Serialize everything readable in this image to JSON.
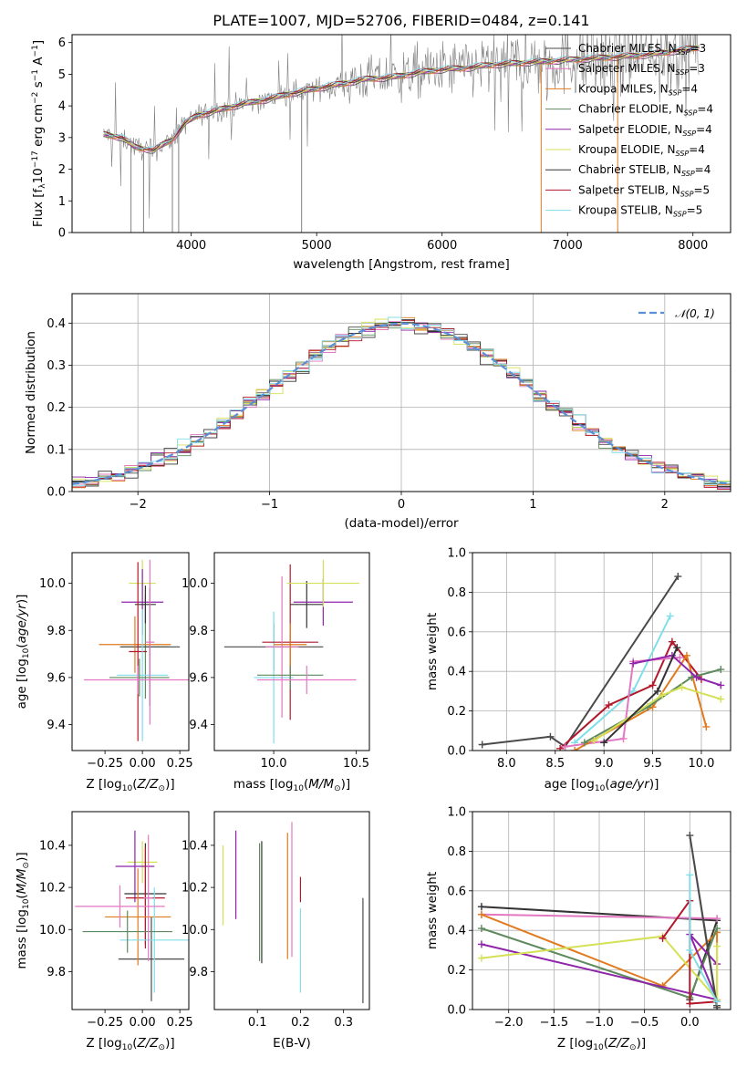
{
  "figure": {
    "title": "PLATE=1007, MJD=52706, FIBERID=0484, z=0.141"
  },
  "series_names": [
    "Chabrier MILES, N_SSP=3",
    "Salpeter MILES, N_SSP=3",
    "Kroupa MILES, N_SSP=4",
    "Chabrier ELODIE, N_SSP=4",
    "Salpeter ELODIE, N_SSP=4",
    "Kroupa ELODIE, N_SSP=4",
    "Chabrier STELIB, N_SSP=4",
    "Salpeter STELIB, N_SSP=5",
    "Kroupa STELIB, N_SSP=5"
  ],
  "series_colors": [
    "#4a4a4a",
    "#e377c2",
    "#e07b1f",
    "#5e8a5e",
    "#8e24aa",
    "#d4e157",
    "#333333",
    "#b2182b",
    "#80deea"
  ],
  "chart_data": [
    {
      "type": "line",
      "panel": "spectrum",
      "title": "PLATE=1007, MJD=52706, FIBERID=0484, z=0.141",
      "xlabel": "wavelength [Angstrom, rest frame]",
      "ylabel": "Flux [f_λ 10^-17 erg cm^-2 s^-1 A^-1]",
      "xlim": [
        3050,
        8300
      ],
      "ylim": [
        0,
        6.25
      ],
      "xticks": [
        4000,
        5000,
        6000,
        7000,
        8000
      ],
      "yticks": [
        0,
        1,
        2,
        3,
        4,
        5,
        6
      ],
      "legend": "right",
      "data_color": "#808080",
      "continuum": {
        "x": [
          3300,
          3450,
          3550,
          3700,
          3850,
          3950,
          4050,
          4200,
          4400,
          4600,
          4800,
          5000,
          5200,
          5400,
          5600,
          5800,
          6000,
          6200,
          6400,
          6600,
          6800,
          7000,
          7200,
          7400,
          7600,
          7800,
          8050
        ],
        "y": [
          3.1,
          3.0,
          2.7,
          2.6,
          2.95,
          3.45,
          3.7,
          3.85,
          4.05,
          4.2,
          4.4,
          4.55,
          4.7,
          4.85,
          4.9,
          5.05,
          5.15,
          5.2,
          5.3,
          5.35,
          5.4,
          5.45,
          5.5,
          5.55,
          5.6,
          5.7,
          5.85
        ]
      }
    },
    {
      "type": "step",
      "panel": "residual_histogram",
      "xlabel": "(data-model)/error",
      "ylabel": "Normed distribution",
      "xlim": [
        -2.5,
        2.5
      ],
      "ylim": [
        0,
        0.47
      ],
      "xticks": [
        -2,
        -1,
        0,
        1,
        2
      ],
      "yticks": [
        0.0,
        0.1,
        0.2,
        0.3,
        0.4
      ],
      "grid": true,
      "bin_width": 0.1,
      "reference_curve": {
        "name": "𝒩(0, 1)",
        "mean": 0,
        "sigma": 1,
        "color": "#5b8fd6",
        "style": "dashed"
      },
      "legend": "top-right"
    },
    {
      "type": "errorbar",
      "panel": "age_vs_Z",
      "xlabel": "Z [log10(Z/Z⊙)]",
      "ylabel": "age [log10(age/yr)]",
      "xlim": [
        -0.47,
        0.31
      ],
      "ylim": [
        9.29,
        10.13
      ],
      "xticks": [
        -0.25,
        0.0,
        0.25
      ],
      "yticks": [
        9.4,
        9.6,
        9.8,
        10.0
      ],
      "points": [
        {
          "x": 0.02,
          "xerr": 0.16,
          "y": 9.73,
          "yerr": 0.22,
          "c": 3
        },
        {
          "x": 0.0,
          "xerr": 0.09,
          "y": 10.0,
          "yerr": 0.1,
          "c": 5
        },
        {
          "x": 0.05,
          "xerr": 0.2,
          "y": 9.73,
          "yerr": 0.25,
          "c": 0
        },
        {
          "x": -0.05,
          "xerr": 0.24,
          "y": 9.74,
          "yerr": 0.12,
          "c": 2
        },
        {
          "x": 0.0,
          "xerr": 0.14,
          "y": 9.92,
          "yerr": 0.14,
          "c": 4
        },
        {
          "x": 0.02,
          "xerr": 0.07,
          "y": 9.91,
          "yerr": 0.08,
          "c": 6
        },
        {
          "x": -0.03,
          "xerr": 0.06,
          "y": 9.71,
          "yerr": 0.38,
          "c": 7
        },
        {
          "x": 0.0,
          "xerr": 0.17,
          "y": 9.61,
          "yerr": 0.28,
          "c": 8
        },
        {
          "x": -0.02,
          "xerr": 0.2,
          "y": 9.6,
          "yerr": 0.08,
          "c": 3
        },
        {
          "x": -0.03,
          "xerr": 0.36,
          "y": 9.59,
          "yerr": 0.06,
          "c": 1
        },
        {
          "x": 0.05,
          "xerr": 0.03,
          "y": 9.75,
          "yerr": 0.35,
          "c": 1
        }
      ]
    },
    {
      "type": "errorbar",
      "panel": "age_vs_mass",
      "xlabel": "mass [log10(M/M⊙)]",
      "ylabel": "",
      "xlim": [
        9.64,
        10.58
      ],
      "ylim": [
        9.29,
        10.13
      ],
      "xticks": [
        10.0,
        10.5
      ],
      "yticks": [
        9.4,
        9.6,
        9.8,
        10.0
      ],
      "points": [
        {
          "x": 10.0,
          "xerr": 0.3,
          "y": 9.73,
          "yerr": 0.1,
          "c": 0
        },
        {
          "x": 10.0,
          "xerr": 0.12,
          "y": 9.6,
          "yerr": 0.28,
          "c": 8
        },
        {
          "x": 10.1,
          "xerr": 0.17,
          "y": 9.75,
          "yerr": 0.33,
          "c": 7
        },
        {
          "x": 10.2,
          "xerr": 0.1,
          "y": 9.91,
          "yerr": 0.1,
          "c": 6
        },
        {
          "x": 10.3,
          "xerr": 0.18,
          "y": 9.92,
          "yerr": 0.1,
          "c": 4
        },
        {
          "x": 10.3,
          "xerr": 0.22,
          "y": 10.0,
          "yerr": 0.1,
          "c": 5
        },
        {
          "x": 10.05,
          "xerr": 0.1,
          "y": 9.73,
          "yerr": 0.3,
          "c": 1
        },
        {
          "x": 10.1,
          "xerr": 0.2,
          "y": 9.61,
          "yerr": 0.06,
          "c": 3
        },
        {
          "x": 10.1,
          "xerr": 0.1,
          "y": 9.74,
          "yerr": 0.09,
          "c": 2
        },
        {
          "x": 10.2,
          "xerr": 0.3,
          "y": 9.59,
          "yerr": 0.06,
          "c": 1
        }
      ]
    },
    {
      "type": "line",
      "panel": "weight_vs_age",
      "xlabel": "age [log10(age/yr)]",
      "ylabel": "mass weight",
      "xlim": [
        7.65,
        10.3
      ],
      "ylim": [
        0,
        1.0
      ],
      "xticks": [
        8.0,
        8.5,
        9.0,
        9.5,
        10.0
      ],
      "yticks": [
        0.0,
        0.2,
        0.4,
        0.6,
        0.8,
        1.0
      ],
      "grid": true,
      "series": [
        {
          "c": 0,
          "x": [
            7.75,
            8.45,
            8.6,
            9.76
          ],
          "y": [
            0.03,
            0.07,
            0.02,
            0.88
          ]
        },
        {
          "c": 8,
          "x": [
            8.7,
            9.3,
            9.68
          ],
          "y": [
            0.04,
            0.3,
            0.68
          ]
        },
        {
          "c": 7,
          "x": [
            8.55,
            9.05,
            9.5,
            9.7,
            10.0
          ],
          "y": [
            0.01,
            0.23,
            0.33,
            0.55,
            0.36
          ]
        },
        {
          "c": 1,
          "x": [
            8.6,
            9.2,
            9.3,
            9.78
          ],
          "y": [
            0.02,
            0.06,
            0.45,
            0.47
          ]
        },
        {
          "c": 2,
          "x": [
            8.7,
            9.5,
            9.85,
            10.05
          ],
          "y": [
            0.0,
            0.22,
            0.48,
            0.12
          ]
        },
        {
          "c": 3,
          "x": [
            8.8,
            9.45,
            9.9,
            10.2
          ],
          "y": [
            0.04,
            0.22,
            0.37,
            0.41
          ]
        },
        {
          "c": 4,
          "x": [
            9.3,
            9.7,
            9.95,
            10.2
          ],
          "y": [
            0.44,
            0.48,
            0.37,
            0.33
          ]
        },
        {
          "c": 5,
          "x": [
            8.9,
            9.6,
            9.8,
            10.2
          ],
          "y": [
            0.05,
            0.28,
            0.32,
            0.26
          ]
        },
        {
          "c": 6,
          "x": [
            9.0,
            9.55,
            9.75
          ],
          "y": [
            0.04,
            0.3,
            0.52
          ]
        }
      ]
    },
    {
      "type": "errorbar",
      "panel": "mass_vs_Z",
      "xlabel": "Z [log10(Z/Z⊙)]",
      "ylabel": "mass [log10(M/M⊙)]",
      "xlim": [
        -0.47,
        0.31
      ],
      "ylim": [
        9.62,
        10.56
      ],
      "xticks": [
        -0.25,
        0.0,
        0.25
      ],
      "yticks": [
        9.8,
        10.0,
        10.2,
        10.4
      ],
      "points": [
        {
          "x": 0.06,
          "xerr": 0.22,
          "y": 9.86,
          "yerr": 0.2,
          "c": 0
        },
        {
          "x": 0.0,
          "xerr": 0.1,
          "y": 10.32,
          "yerr": 0.1,
          "c": 5
        },
        {
          "x": -0.05,
          "xerr": 0.13,
          "y": 10.3,
          "yerr": 0.17,
          "c": 4
        },
        {
          "x": 0.02,
          "xerr": 0.14,
          "y": 10.17,
          "yerr": 0.24,
          "c": 6
        },
        {
          "x": 0.02,
          "xerr": 0.13,
          "y": 10.15,
          "yerr": 0.24,
          "c": 7
        },
        {
          "x": -0.03,
          "xerr": 0.22,
          "y": 10.06,
          "yerr": 0.23,
          "c": 2
        },
        {
          "x": 0.08,
          "xerr": 0.23,
          "y": 9.95,
          "yerr": 0.25,
          "c": 8
        },
        {
          "x": -0.1,
          "xerr": 0.3,
          "y": 9.99,
          "yerr": 0.1,
          "c": 3
        },
        {
          "x": -0.15,
          "xerr": 0.3,
          "y": 10.11,
          "yerr": 0.1,
          "c": 1
        },
        {
          "x": 0.04,
          "xerr": 0.03,
          "y": 10.15,
          "yerr": 0.3,
          "c": 1
        }
      ]
    },
    {
      "type": "errorbar",
      "panel": "mass_vs_EBV",
      "xlabel": "E(B-V)",
      "ylabel": "",
      "xlim": [
        0.0,
        0.36
      ],
      "ylim": [
        9.62,
        10.56
      ],
      "xticks": [
        0.1,
        0.2,
        0.3
      ],
      "yticks": [
        9.8,
        10.0,
        10.2,
        10.4
      ],
      "points": [
        {
          "x": 0.02,
          "y": 10.21,
          "yerr": 0.19,
          "c": 5
        },
        {
          "x": 0.05,
          "y": 10.26,
          "yerr": 0.21,
          "c": 4
        },
        {
          "x": 0.105,
          "y": 10.13,
          "yerr": 0.28,
          "c": 3
        },
        {
          "x": 0.11,
          "y": 10.13,
          "yerr": 0.29,
          "c": 6
        },
        {
          "x": 0.17,
          "y": 10.16,
          "yerr": 0.3,
          "c": 2
        },
        {
          "x": 0.18,
          "y": 10.19,
          "yerr": 0.32,
          "c": 1
        },
        {
          "x": 0.2,
          "y": 10.19,
          "yerr": 0.06,
          "c": 7
        },
        {
          "x": 0.2,
          "y": 9.9,
          "yerr": 0.2,
          "c": 8
        },
        {
          "x": 0.345,
          "y": 9.9,
          "yerr": 0.25,
          "c": 0
        }
      ]
    },
    {
      "type": "line",
      "panel": "weight_vs_Z",
      "xlabel": "Z [log10(Z/Z⊙)]",
      "ylabel": "mass weight",
      "xlim": [
        -2.4,
        0.45
      ],
      "ylim": [
        0,
        1.0
      ],
      "xticks": [
        -2.0,
        -1.5,
        -1.0,
        -0.5,
        0.0
      ],
      "yticks": [
        0.0,
        0.2,
        0.4,
        0.6,
        0.8,
        1.0
      ],
      "grid": true,
      "series": [
        {
          "c": 6,
          "x": [
            -2.3,
            0.3,
            0.0
          ],
          "y": [
            0.52,
            0.45,
            0.05
          ]
        },
        {
          "c": 1,
          "x": [
            -2.3,
            0.3
          ],
          "y": [
            0.48,
            0.46
          ]
        },
        {
          "c": 2,
          "x": [
            -2.3,
            -0.3,
            0.3,
            0.3
          ],
          "y": [
            0.48,
            0.12,
            0.39,
            0.02
          ]
        },
        {
          "c": 3,
          "x": [
            -2.3,
            0.0,
            0.3
          ],
          "y": [
            0.41,
            0.06,
            0.41
          ]
        },
        {
          "c": 4,
          "x": [
            -2.3,
            0.3,
            0.0,
            0.3
          ],
          "y": [
            0.33,
            0.05,
            0.38,
            0.23
          ]
        },
        {
          "c": 5,
          "x": [
            -2.3,
            -0.3,
            0.3,
            0.3
          ],
          "y": [
            0.26,
            0.37,
            0.05,
            0.32
          ]
        },
        {
          "c": 0,
          "x": [
            0.3,
            0.0,
            0.3
          ],
          "y": [
            0.01,
            0.88,
            0.02
          ]
        },
        {
          "c": 7,
          "x": [
            -0.3,
            0.0,
            0.0,
            0.3
          ],
          "y": [
            0.36,
            0.55,
            0.03,
            0.04
          ]
        },
        {
          "c": 8,
          "x": [
            0.0,
            0.0,
            0.3
          ],
          "y": [
            0.68,
            0.3,
            0.04
          ]
        }
      ]
    }
  ]
}
